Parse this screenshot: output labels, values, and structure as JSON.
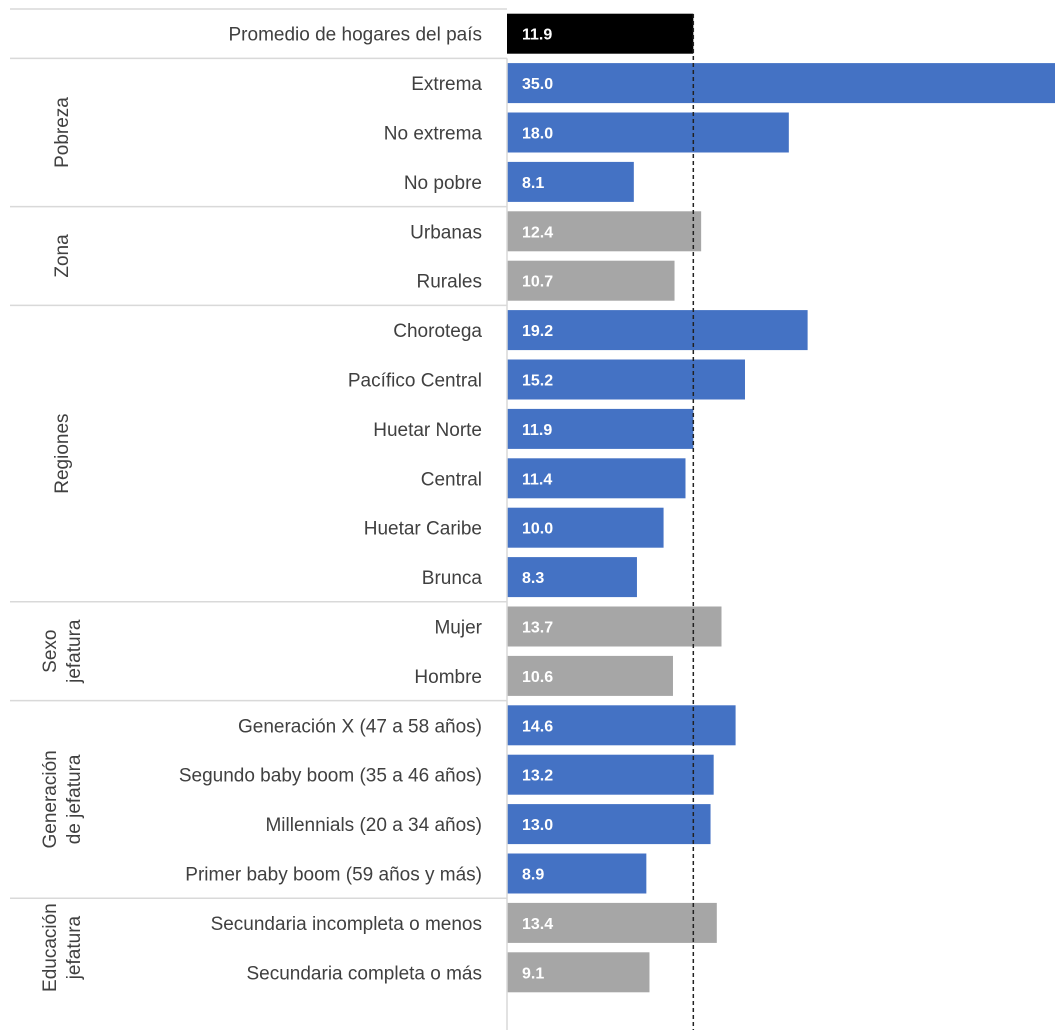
{
  "chart_data": {
    "type": "bar",
    "orientation": "horizontal",
    "reference_line": 11.9,
    "xlim": [
      0,
      35
    ],
    "overall": {
      "label": "Promedio de hogares del país",
      "value": 11.9,
      "color": "#000000"
    },
    "groups": [
      {
        "label": "Pobreza",
        "label_lines": [
          "Pobreza"
        ],
        "color": "#4472C4",
        "items": [
          {
            "label": "Extrema",
            "value": 35.0,
            "value_label": "35.0"
          },
          {
            "label": "No extrema",
            "value": 18.0,
            "value_label": "18.0"
          },
          {
            "label": "No pobre",
            "value": 8.1,
            "value_label": "8.1"
          }
        ]
      },
      {
        "label": "Zona",
        "label_lines": [
          "Zona"
        ],
        "color": "#A6A6A6",
        "items": [
          {
            "label": "Urbanas",
            "value": 12.4,
            "value_label": "12.4"
          },
          {
            "label": "Rurales",
            "value": 10.7,
            "value_label": "10.7"
          }
        ]
      },
      {
        "label": "Regiones",
        "label_lines": [
          "Regiones"
        ],
        "color": "#4472C4",
        "items": [
          {
            "label": "Chorotega",
            "value": 19.2,
            "value_label": "19.2"
          },
          {
            "label": "Pacífico Central",
            "value": 15.2,
            "value_label": "15.2"
          },
          {
            "label": "Huetar Norte",
            "value": 11.9,
            "value_label": "11.9"
          },
          {
            "label": "Central",
            "value": 11.4,
            "value_label": "11.4"
          },
          {
            "label": "Huetar Caribe",
            "value": 10.0,
            "value_label": "10.0"
          },
          {
            "label": "Brunca",
            "value": 8.3,
            "value_label": "8.3"
          }
        ]
      },
      {
        "label": "Sexo jefatura",
        "label_lines": [
          "Sexo",
          "jefatura"
        ],
        "color": "#A6A6A6",
        "items": [
          {
            "label": "Mujer",
            "value": 13.7,
            "value_label": "13.7"
          },
          {
            "label": "Hombre",
            "value": 10.6,
            "value_label": "10.6"
          }
        ]
      },
      {
        "label": "Generación de jefatura",
        "label_lines": [
          "Generación",
          "de jefatura"
        ],
        "color": "#4472C4",
        "items": [
          {
            "label": "Generación X (47 a 58 años)",
            "value": 14.6,
            "value_label": "14.6"
          },
          {
            "label": "Segundo baby boom (35 a 46 años)",
            "value": 13.2,
            "value_label": "13.2"
          },
          {
            "label": "Millennials (20 a 34 años)",
            "value": 13.0,
            "value_label": "13.0"
          },
          {
            "label": "Primer baby boom (59 años y más)",
            "value": 8.9,
            "value_label": "8.9"
          }
        ]
      },
      {
        "label": "Educación jefatura",
        "label_lines": [
          "Educación",
          "jefatura"
        ],
        "color": "#A6A6A6",
        "items": [
          {
            "label": "Secundaria incompleta o menos",
            "value": 13.4,
            "value_label": "13.4"
          },
          {
            "label": "Secundaria completa o más",
            "value": 9.1,
            "value_label": "9.1"
          }
        ]
      }
    ],
    "grid": false,
    "legend": "none"
  }
}
